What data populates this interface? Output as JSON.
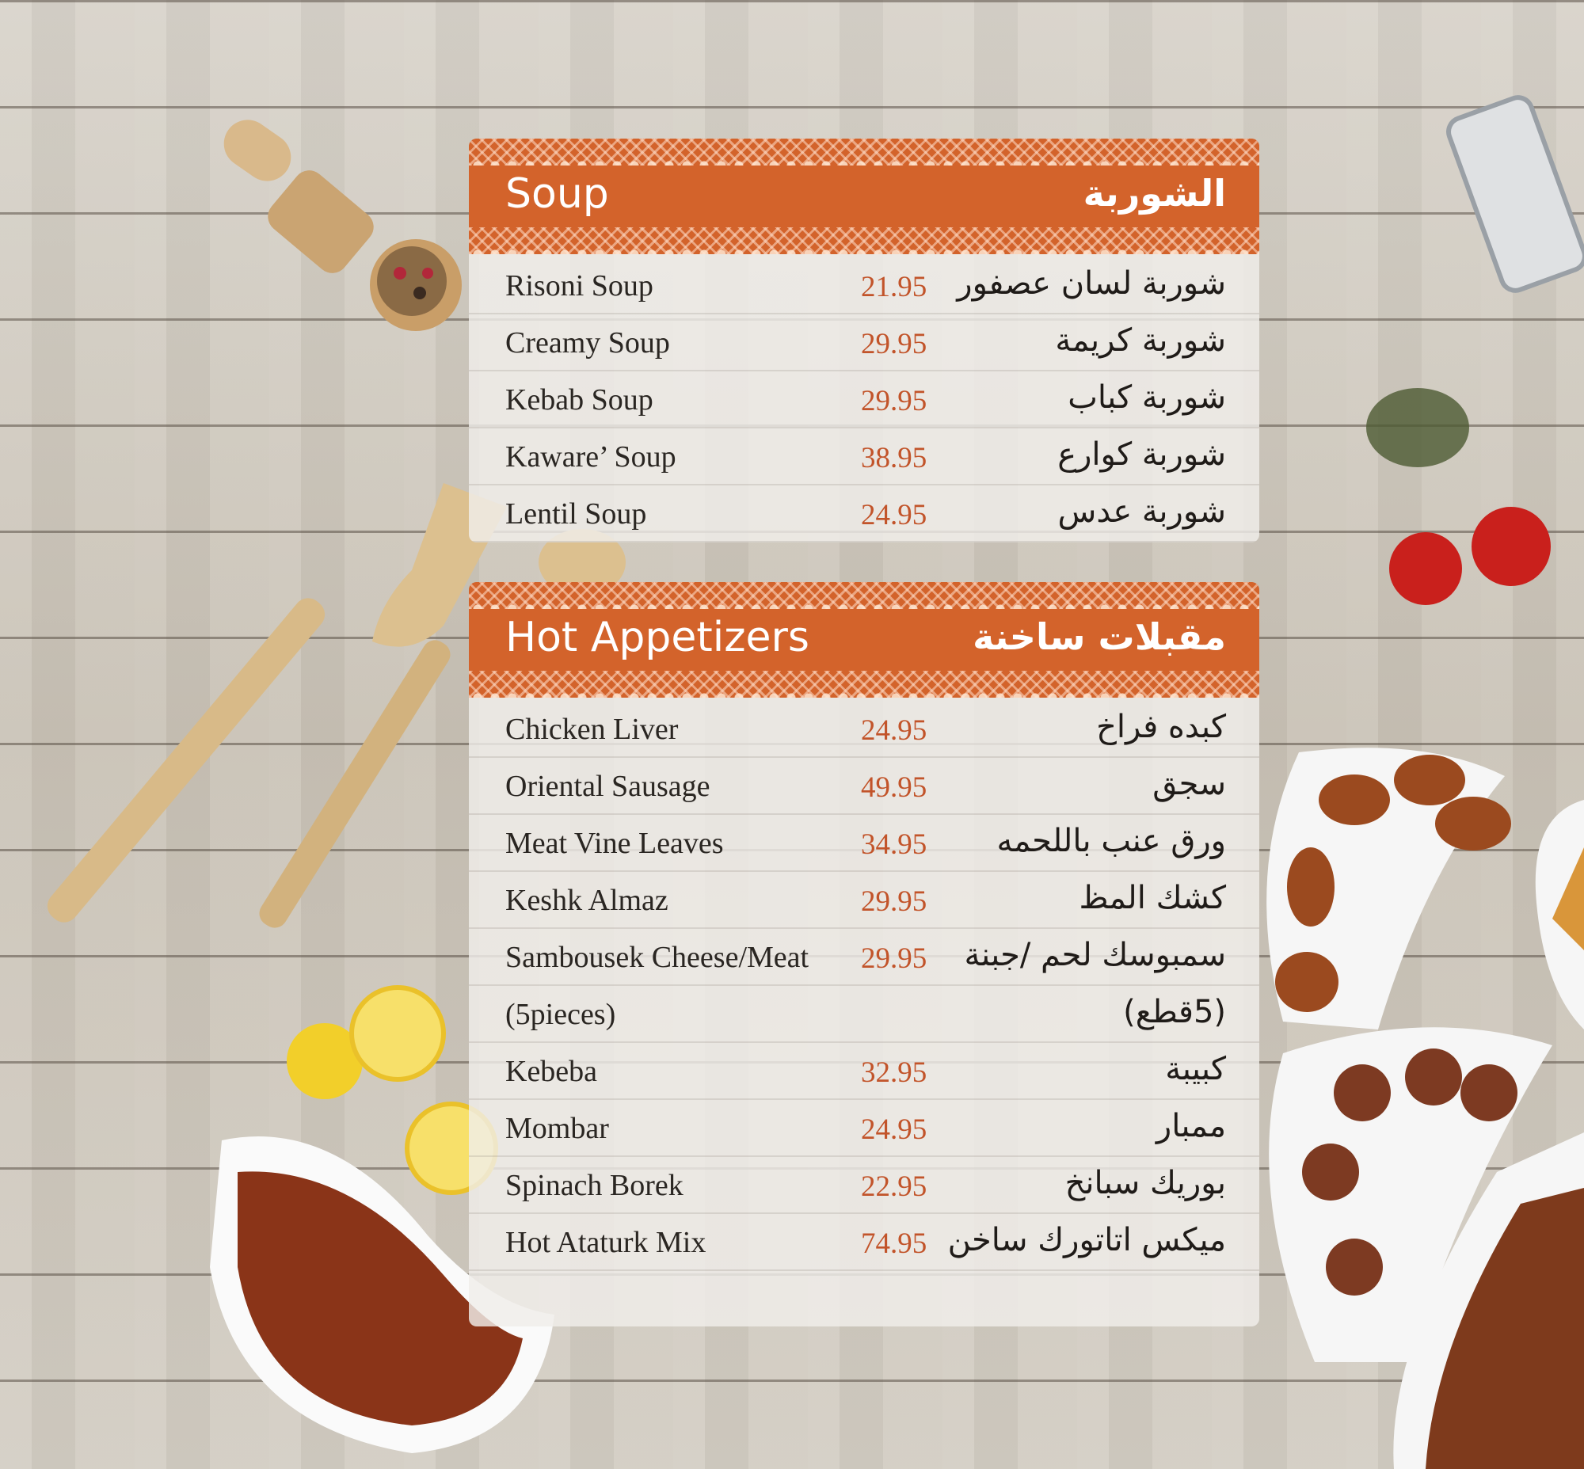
{
  "sections": [
    {
      "title": "Soup",
      "title_ar": "الشوربة",
      "items": [
        {
          "name": "Risoni Soup",
          "price": "21.95",
          "name_ar": "شوربة لسان عصفور"
        },
        {
          "name": "Creamy Soup",
          "price": "29.95",
          "name_ar": "شوربة كريمة"
        },
        {
          "name": "Kebab Soup",
          "price": "29.95",
          "name_ar": "شوربة كباب"
        },
        {
          "name": "Kaware’ Soup",
          "price": "38.95",
          "name_ar": "شوربة كوارع"
        },
        {
          "name": "Lentil Soup",
          "price": "24.95",
          "name_ar": "شوربة عدس"
        }
      ]
    },
    {
      "title": "Hot Appetizers",
      "title_ar": "مقبلات ساخنة",
      "items": [
        {
          "name": "Chicken Liver",
          "price": "24.95",
          "name_ar": "كبده فراخ"
        },
        {
          "name": "Oriental Sausage",
          "price": "49.95",
          "name_ar": "سجق"
        },
        {
          "name": "Meat Vine Leaves",
          "price": "34.95",
          "name_ar": "ورق عنب باللحمه"
        },
        {
          "name": "Keshk Almaz",
          "price": "29.95",
          "name_ar": "كشك المظ"
        },
        {
          "name": "Sambousek Cheese/Meat",
          "price": "29.95",
          "name_ar": "سمبوسك لحم /جبنة"
        },
        {
          "name": "(5pieces)",
          "price": "",
          "name_ar": "(5قطع)"
        },
        {
          "name": "Kebeba",
          "price": "32.95",
          "name_ar": "كبيبة"
        },
        {
          "name": "Mombar",
          "price": "24.95",
          "name_ar": "ممبار"
        },
        {
          "name": "Spinach Borek",
          "price": "22.95",
          "name_ar": "بوريك سبانخ"
        },
        {
          "name": "Hot Ataturk Mix",
          "price": "74.95",
          "name_ar": "ميكس اتاتورك ساخن"
        }
      ]
    }
  ],
  "colors": {
    "accent": "#d3632b",
    "price": "#c2542a",
    "text": "#2a2622"
  }
}
